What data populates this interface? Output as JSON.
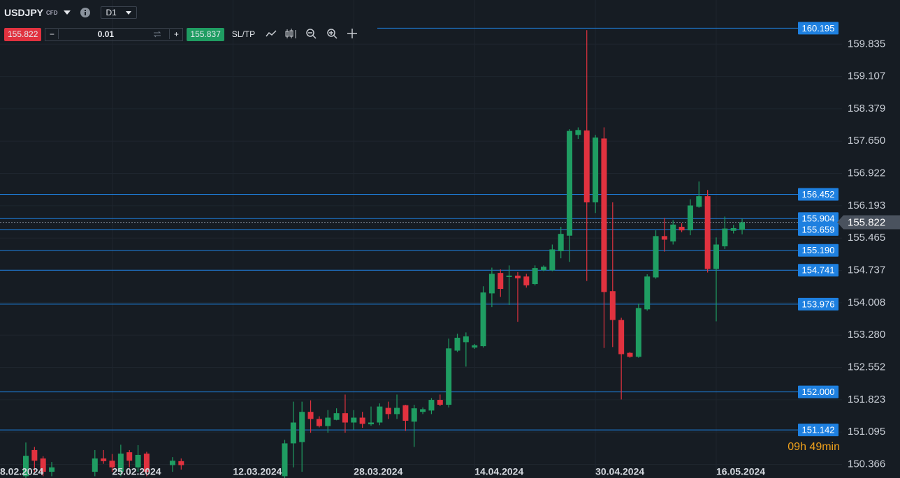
{
  "toolbar": {
    "symbol": "USDJPY",
    "instrument_type": "CFD",
    "timeframe": "D1",
    "bid": "155.822",
    "lot": "0.01",
    "ask": "155.837",
    "sltp": "SL/TP"
  },
  "timer": "09h 49min",
  "chart_data": {
    "type": "candlestick",
    "categories": [
      "8.02.2024",
      null,
      null,
      null,
      null,
      null,
      null,
      null,
      null,
      null,
      null,
      null,
      null,
      null,
      "25.02.2024",
      null,
      null,
      null,
      null,
      null,
      null,
      null,
      null,
      null,
      null,
      null,
      null,
      null,
      "12.03.2024",
      null,
      null,
      null,
      null,
      null,
      null,
      null,
      null,
      null,
      null,
      null,
      null,
      null,
      "28.03.2024",
      null,
      null,
      null,
      null,
      null,
      null,
      null,
      null,
      null,
      null,
      null,
      null,
      null,
      "14.04.2024",
      null,
      null,
      null,
      null,
      null,
      null,
      null,
      null,
      null,
      null,
      null,
      null,
      null,
      "30.04.2024",
      null,
      null,
      null,
      null,
      null,
      null,
      null,
      null,
      null,
      null,
      null,
      null,
      null,
      "16.05.2024",
      null,
      null,
      null
    ],
    "open": [
      null,
      null,
      null,
      null,
      150.1,
      150.69,
      150.5,
      150.2,
      null,
      null,
      null,
      null,
      150.2,
      150.5,
      150.45,
      150.2,
      150.64,
      150.3,
      150.61,
      null,
      null,
      150.35,
      150.44,
      null,
      null,
      null,
      null,
      null,
      null,
      null,
      null,
      null,
      null,
      null,
      150.1,
      150.84,
      150.87,
      151.55,
      151.39,
      151.23,
      151.37,
      151.52,
      151.31,
      151.42,
      151.27,
      151.31,
      151.64,
      151.5,
      151.7,
      151.33,
      151.55,
      151.58,
      151.82,
      151.71,
      152.93,
      153.12,
      153.0,
      153.03,
      154.22,
      154.68,
      154.59,
      154.62,
      154.6,
      154.43,
      154.74,
      154.74,
      155.17,
      155.52,
      157.79,
      157.89,
      156.27,
      157.71,
      154.27,
      153.62,
      152.88,
      152.79,
      153.86,
      154.58,
      155.51,
      155.39,
      155.72,
      155.64,
      156.17,
      156.41,
      154.77,
      155.28,
      155.63,
      155.65
    ],
    "high": [
      null,
      null,
      null,
      null,
      150.86,
      150.76,
      150.55,
      150.42,
      null,
      null,
      null,
      null,
      150.69,
      150.69,
      150.6,
      150.81,
      150.69,
      150.8,
      150.65,
      null,
      null,
      150.53,
      150.5,
      null,
      null,
      null,
      null,
      null,
      null,
      null,
      null,
      null,
      null,
      null,
      150.92,
      151.78,
      151.78,
      151.81,
      151.45,
      151.59,
      151.63,
      151.94,
      151.59,
      151.55,
      151.67,
      151.74,
      151.78,
      151.94,
      151.71,
      151.71,
      151.65,
      151.86,
      151.94,
      153.2,
      153.31,
      153.34,
      153.08,
      154.38,
      154.8,
      154.76,
      154.85,
      154.7,
      154.66,
      154.85,
      154.85,
      155.32,
      155.72,
      157.92,
      157.96,
      160.15,
      157.79,
      157.96,
      156.27,
      153.67,
      152.9,
      153.99,
      154.65,
      155.64,
      155.92,
      155.87,
      155.8,
      156.34,
      156.74,
      156.55,
      155.48,
      155.95,
      155.76,
      155.9
    ],
    "low": [
      null,
      null,
      null,
      null,
      150.0,
      150.2,
      150.1,
      150.1,
      null,
      null,
      null,
      null,
      150.1,
      150.38,
      150.2,
      150.1,
      150.3,
      150.2,
      150.1,
      null,
      null,
      150.2,
      150.25,
      null,
      null,
      null,
      null,
      null,
      null,
      null,
      null,
      null,
      null,
      null,
      150.0,
      150.3,
      150.2,
      151.08,
      151.2,
      151.08,
      151.36,
      151.08,
      151.15,
      151.19,
      151.24,
      151.25,
      151.39,
      151.39,
      151.12,
      150.76,
      151.5,
      151.5,
      151.68,
      151.65,
      152.9,
      152.57,
      152.97,
      153.0,
      153.91,
      154.14,
      153.96,
      153.58,
      154.35,
      154.4,
      154.72,
      154.72,
      155.01,
      154.93,
      157.7,
      154.5,
      156.03,
      152.99,
      153.01,
      151.83,
      152.77,
      152.77,
      153.83,
      154.55,
      155.16,
      155.32,
      155.6,
      155.53,
      156.15,
      154.69,
      153.59,
      155.22,
      155.57,
      155.55
    ],
    "close": [
      null,
      null,
      null,
      null,
      150.56,
      150.45,
      150.2,
      150.3,
      null,
      null,
      null,
      null,
      150.5,
      150.44,
      150.3,
      150.61,
      150.45,
      150.58,
      150.2,
      null,
      null,
      150.45,
      150.35,
      null,
      null,
      null,
      null,
      null,
      null,
      null,
      null,
      null,
      null,
      null,
      150.84,
      151.31,
      151.55,
      151.39,
      151.23,
      151.42,
      151.52,
      151.31,
      151.42,
      151.28,
      151.31,
      151.67,
      151.5,
      151.64,
      151.35,
      151.63,
      151.61,
      151.82,
      151.71,
      152.98,
      153.22,
      153.25,
      153.05,
      154.24,
      154.66,
      154.32,
      154.62,
      154.56,
      154.4,
      154.79,
      154.82,
      155.21,
      155.56,
      157.88,
      157.9,
      156.27,
      157.73,
      154.25,
      153.62,
      152.85,
      152.79,
      153.89,
      154.6,
      155.51,
      155.43,
      155.77,
      155.64,
      156.2,
      156.41,
      154.77,
      155.32,
      155.68,
      155.69,
      155.82
    ],
    "up_color": "#1f9d62",
    "down_color": "#e1323f",
    "ylim": [
      150.06,
      160.83
    ],
    "yticks": [
      159.835,
      159.107,
      158.379,
      {
        "value": 157.65,
        "label": "157.650"
      },
      156.922,
      156.193,
      155.465,
      154.737,
      154.008,
      {
        "value": 153.28,
        "label": "153.280"
      },
      152.552,
      151.823,
      151.095,
      150.366
    ],
    "levels": [
      160.195,
      156.452,
      155.904,
      155.659,
      {
        "value": 155.19,
        "label": "155.190"
      },
      154.741,
      153.976,
      {
        "value": 152.0,
        "label": "152.000"
      },
      151.142
    ],
    "level_color": "#1e80e0",
    "current_price": 155.822,
    "grid": true
  }
}
